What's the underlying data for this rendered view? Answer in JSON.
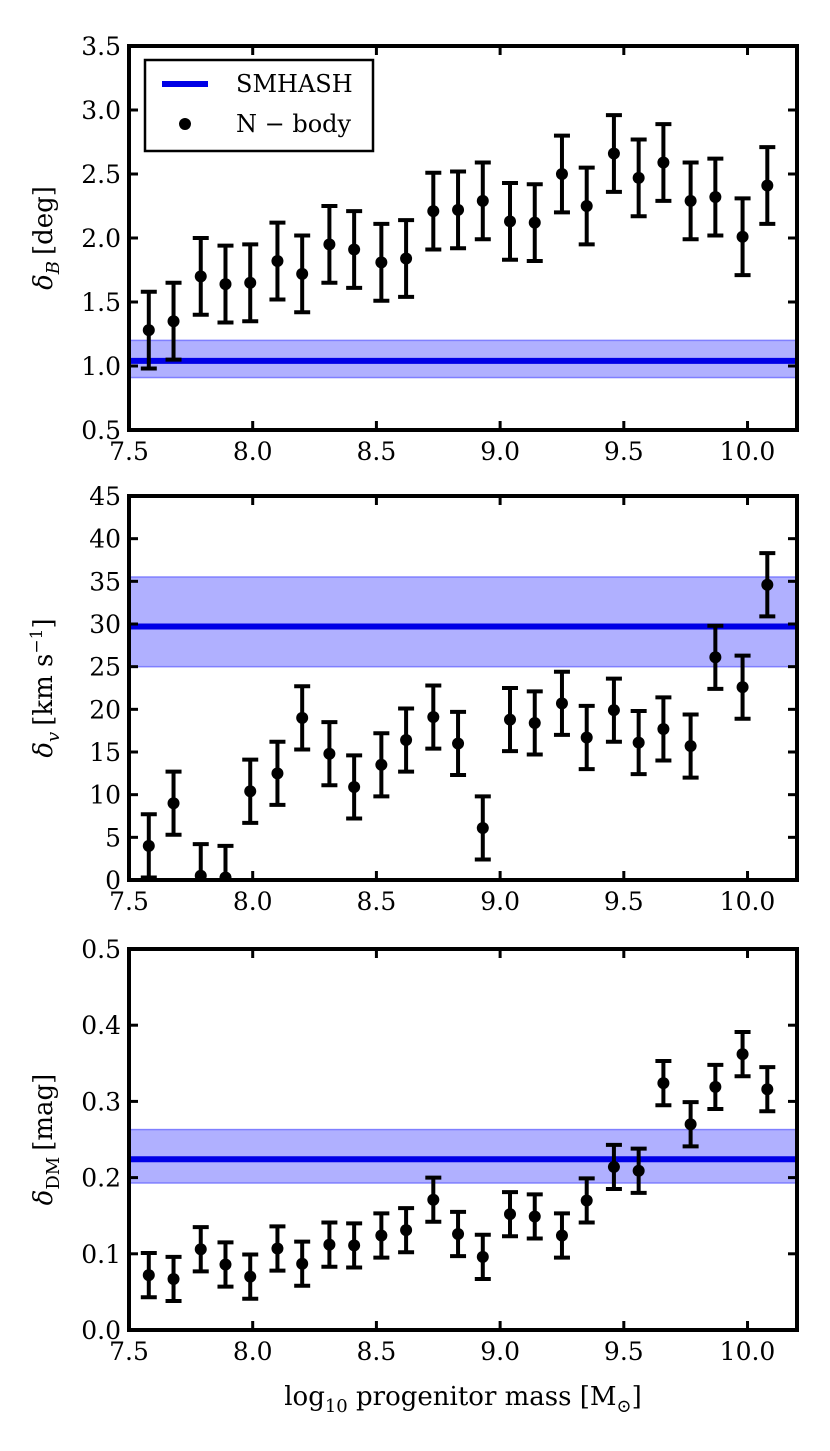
{
  "chart_data": [
    {
      "type": "scatter",
      "panel": "delta-B",
      "ylabel_main": "δ",
      "ylabel_sub": "B",
      "ylabel_unit": "[deg]",
      "xlim": [
        7.5,
        10.2
      ],
      "ylim": [
        0.5,
        3.5
      ],
      "xticks": [
        "7.5",
        "8.0",
        "8.5",
        "9.0",
        "9.5",
        "10.0"
      ],
      "yticks": [
        "0.5",
        "1.0",
        "1.5",
        "2.0",
        "2.5",
        "3.0",
        "3.5"
      ],
      "show_xtick_labels": true,
      "legend": {
        "placement": "top-left",
        "entries": [
          {
            "label": "SMHASH",
            "marker": "line"
          },
          {
            "label": "N − body",
            "marker": "dot"
          }
        ]
      },
      "band": {
        "center": 1.04,
        "low": 0.91,
        "high": 1.2
      },
      "series": [
        {
          "name": "N − body",
          "x": [
            7.58,
            7.68,
            7.79,
            7.89,
            7.99,
            8.1,
            8.2,
            8.31,
            8.41,
            8.52,
            8.62,
            8.73,
            8.83,
            8.93,
            9.04,
            9.14,
            9.25,
            9.35,
            9.46,
            9.56,
            9.66,
            9.77,
            9.87,
            9.98,
            10.08
          ],
          "y": [
            1.28,
            1.35,
            1.7,
            1.64,
            1.65,
            1.82,
            1.72,
            1.95,
            1.91,
            1.81,
            1.84,
            2.21,
            2.22,
            2.29,
            2.13,
            2.12,
            2.5,
            2.25,
            2.66,
            2.47,
            2.59,
            2.29,
            2.32,
            2.01,
            2.41
          ],
          "err": [
            0.3,
            0.3,
            0.3,
            0.3,
            0.3,
            0.3,
            0.3,
            0.3,
            0.3,
            0.3,
            0.3,
            0.3,
            0.3,
            0.3,
            0.3,
            0.3,
            0.3,
            0.3,
            0.3,
            0.3,
            0.3,
            0.3,
            0.3,
            0.3,
            0.3
          ]
        }
      ]
    },
    {
      "type": "scatter",
      "panel": "delta-v",
      "ylabel_main": "δ",
      "ylabel_sub": "v",
      "ylabel_unit": "[km s",
      "ylabel_sup": "−1",
      "ylabel_close": "]",
      "xlim": [
        7.5,
        10.2
      ],
      "ylim": [
        0,
        45
      ],
      "xticks": [
        "7.5",
        "8.0",
        "8.5",
        "9.0",
        "9.5",
        "10.0"
      ],
      "yticks": [
        "0",
        "5",
        "10",
        "15",
        "20",
        "25",
        "30",
        "35",
        "40",
        "45"
      ],
      "show_xtick_labels": true,
      "band": {
        "center": 29.7,
        "low": 25.0,
        "high": 35.5
      },
      "series": [
        {
          "name": "N − body",
          "x": [
            7.58,
            7.68,
            7.79,
            7.89,
            7.99,
            8.1,
            8.2,
            8.31,
            8.41,
            8.52,
            8.62,
            8.73,
            8.83,
            8.93,
            9.04,
            9.14,
            9.25,
            9.35,
            9.46,
            9.56,
            9.66,
            9.77,
            9.87,
            9.98,
            10.08
          ],
          "y": [
            4.0,
            9.0,
            0.5,
            0.3,
            10.4,
            12.5,
            19.0,
            14.8,
            10.9,
            13.5,
            16.4,
            19.1,
            16.0,
            6.1,
            18.8,
            18.4,
            20.7,
            16.7,
            19.9,
            16.1,
            17.7,
            15.7,
            26.1,
            22.6,
            34.6
          ],
          "err": [
            3.7,
            3.7,
            3.7,
            3.7,
            3.7,
            3.7,
            3.7,
            3.7,
            3.7,
            3.7,
            3.7,
            3.7,
            3.7,
            3.7,
            3.7,
            3.7,
            3.7,
            3.7,
            3.7,
            3.7,
            3.7,
            3.7,
            3.7,
            3.7,
            3.7
          ]
        }
      ]
    },
    {
      "type": "scatter",
      "panel": "delta-DM",
      "ylabel_main": "δ",
      "ylabel_sub": "DM",
      "ylabel_unit": "[mag]",
      "xlabel_main": "log",
      "xlabel_sub": "10",
      "xlabel_mid": " progenitor mass [M",
      "xlabel_sub2": "⊙",
      "xlabel_close": "]",
      "xlim": [
        7.5,
        10.2
      ],
      "ylim": [
        0.0,
        0.5
      ],
      "xticks": [
        "7.5",
        "8.0",
        "8.5",
        "9.0",
        "9.5",
        "10.0"
      ],
      "yticks": [
        "0.0",
        "0.1",
        "0.2",
        "0.3",
        "0.4",
        "0.5"
      ],
      "show_xtick_labels": true,
      "band": {
        "center": 0.224,
        "low": 0.193,
        "high": 0.263
      },
      "series": [
        {
          "name": "N − body",
          "x": [
            7.58,
            7.68,
            7.79,
            7.89,
            7.99,
            8.1,
            8.2,
            8.31,
            8.41,
            8.52,
            8.62,
            8.73,
            8.83,
            8.93,
            9.04,
            9.14,
            9.25,
            9.35,
            9.46,
            9.56,
            9.66,
            9.77,
            9.87,
            9.98,
            10.08
          ],
          "y": [
            0.072,
            0.067,
            0.106,
            0.086,
            0.07,
            0.107,
            0.087,
            0.112,
            0.111,
            0.124,
            0.131,
            0.171,
            0.126,
            0.096,
            0.152,
            0.149,
            0.124,
            0.17,
            0.214,
            0.209,
            0.324,
            0.27,
            0.319,
            0.362,
            0.316
          ],
          "err": [
            0.029,
            0.029,
            0.029,
            0.029,
            0.029,
            0.029,
            0.029,
            0.029,
            0.029,
            0.029,
            0.029,
            0.029,
            0.029,
            0.029,
            0.029,
            0.029,
            0.029,
            0.029,
            0.029,
            0.029,
            0.029,
            0.029,
            0.029,
            0.029,
            0.029
          ]
        }
      ]
    }
  ],
  "colors": {
    "band_fill": "#b0b0ff",
    "band_edge": "#7f7fff",
    "center_line": "#0000e6",
    "points": "#000000",
    "legend_line": "#0000e6"
  }
}
